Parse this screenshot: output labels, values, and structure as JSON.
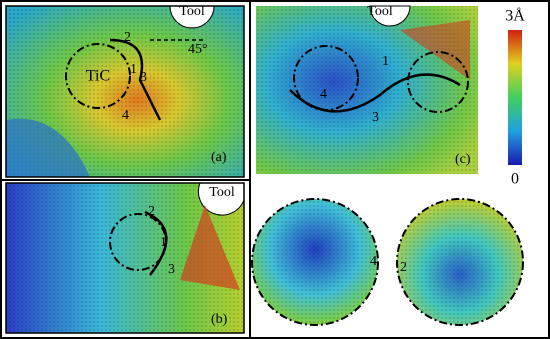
{
  "panels": {
    "a": {
      "label": "(a)",
      "tool": "Tool",
      "inclusion": "TiC",
      "angle": "45°",
      "markers": [
        "1",
        "2",
        "3",
        "4"
      ]
    },
    "b": {
      "label": "(b)",
      "tool": "Tool",
      "markers": [
        "1",
        "2",
        "3"
      ]
    },
    "c": {
      "label": "(c)",
      "tool": "Tool",
      "markers": [
        "1",
        "3",
        "4"
      ]
    },
    "zoom_left": {
      "marker": "4"
    },
    "zoom_right": {
      "marker": "2"
    }
  },
  "colorbar": {
    "max_label": "3Å",
    "min_label": "0"
  }
}
